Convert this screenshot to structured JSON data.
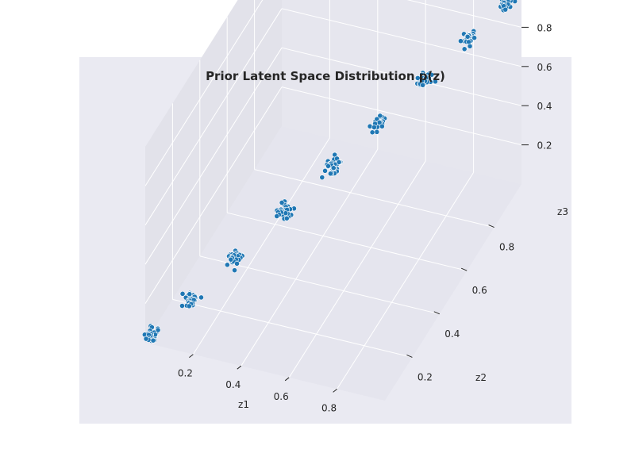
{
  "colors": {
    "figure_background": "#ffffff",
    "axes_background": "#eaeaf2",
    "pane_floor": "#e5e5ee",
    "pane_left": "#e2e2ea",
    "pane_back": "#e6e6ee",
    "grid": "#ffffff",
    "marker_fill": "#1f77b4",
    "marker_edge": "#ffffff",
    "text": "#262626"
  },
  "chart_data": {
    "type": "scatter",
    "projection": "3d",
    "title": "Prior Latent Space Distribution p(z)",
    "xlabel": "z1",
    "ylabel": "z2",
    "zlabel": "z3",
    "xlim": [
      0.0,
      1.0
    ],
    "ylim": [
      0.0,
      1.0
    ],
    "zlim": [
      0.0,
      1.0
    ],
    "xticks": [
      0.2,
      0.4,
      0.6,
      0.8
    ],
    "yticks": [
      0.2,
      0.4,
      0.6,
      0.8
    ],
    "zticks": [
      0.2,
      0.4,
      0.6,
      0.8
    ],
    "xtick_labels": [
      "0.2",
      "0.4",
      "0.6",
      "0.8"
    ],
    "ytick_labels": [
      "0.2",
      "0.4",
      "0.6",
      "0.8"
    ],
    "ztick_labels": [
      "0.2",
      "0.4",
      "0.6",
      "0.8"
    ],
    "grid": true,
    "series": [
      {
        "marker": "o",
        "cluster_centers": [
          [
            0.02,
            0.02,
            0.02
          ],
          [
            0.12,
            0.12,
            0.12
          ],
          [
            0.24,
            0.24,
            0.24
          ],
          [
            0.37,
            0.37,
            0.37
          ],
          [
            0.5,
            0.5,
            0.5
          ],
          [
            0.62,
            0.62,
            0.62
          ],
          [
            0.74,
            0.74,
            0.74
          ],
          [
            0.86,
            0.86,
            0.86
          ],
          [
            0.96,
            0.96,
            0.96
          ]
        ],
        "cluster_spread": 0.012,
        "points_per_cluster": 40
      }
    ]
  }
}
